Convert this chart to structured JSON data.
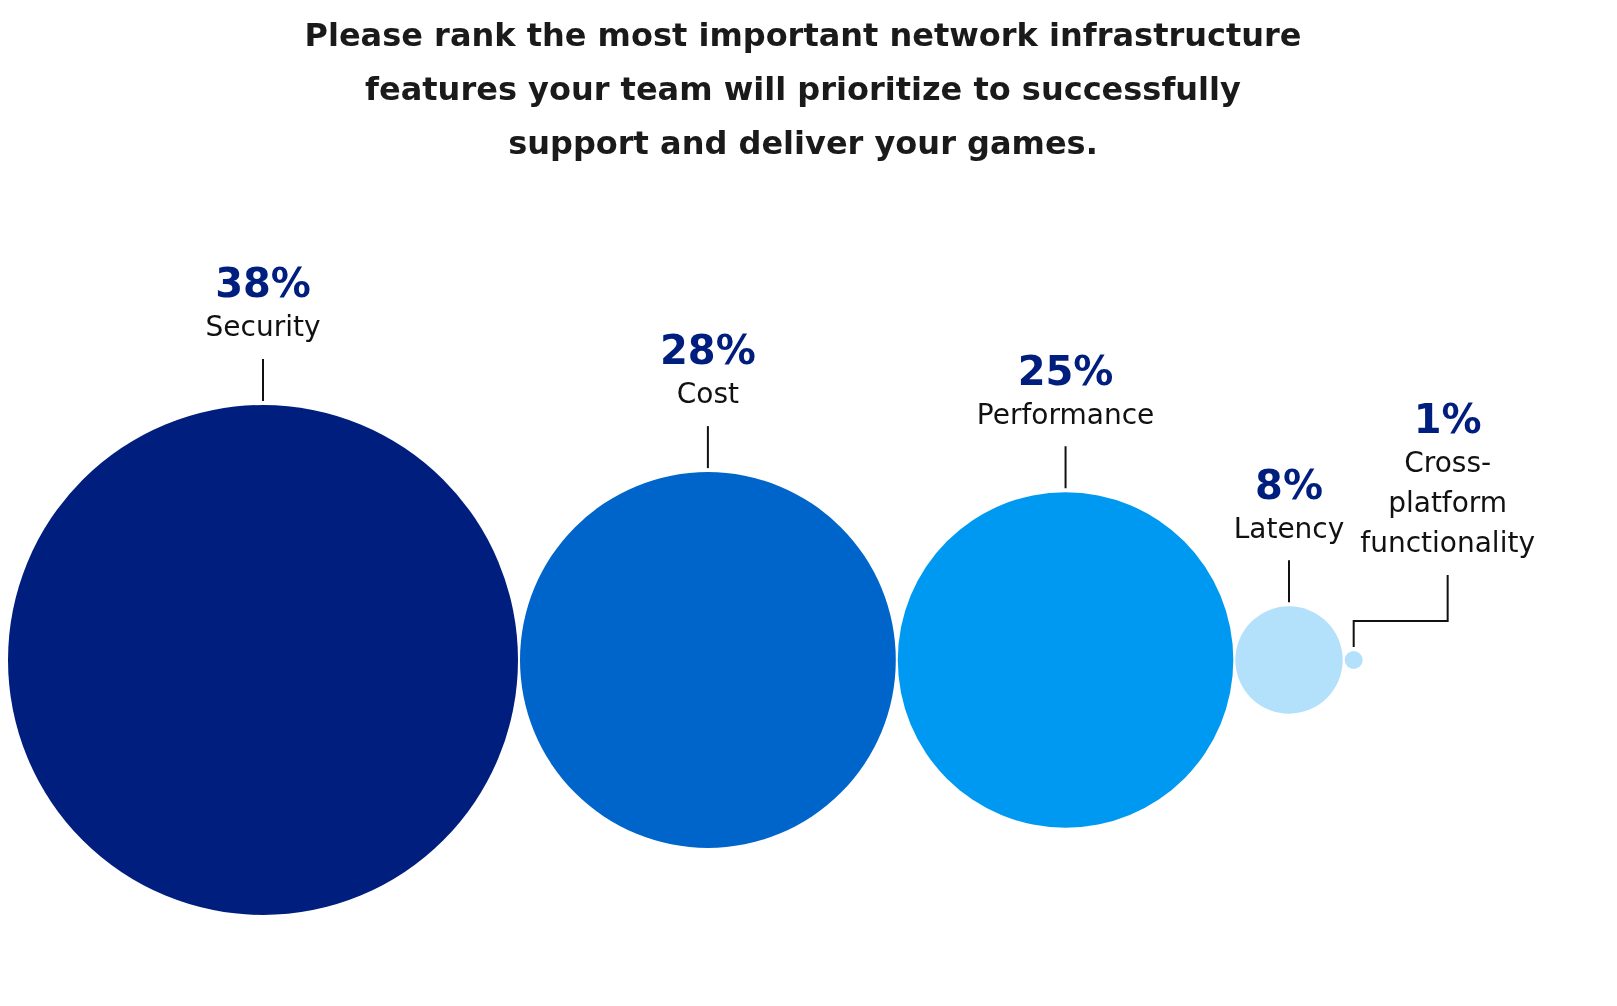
{
  "chart_data": {
    "type": "other",
    "title": "Please rank the most important network infrastructure features your team will prioritize to successfully support and deliver your games.",
    "categories": [
      "Security",
      "Cost",
      "Performance",
      "Latency",
      "Cross-platform functionality"
    ],
    "values": [
      38,
      28,
      25,
      8,
      1
    ],
    "value_labels": [
      "38%",
      "28%",
      "25%",
      "8%",
      "1%"
    ],
    "colors": [
      "#001e7e",
      "#0065cb",
      "#0099f2",
      "#b3e0fb",
      "#b3e0fb"
    ]
  }
}
